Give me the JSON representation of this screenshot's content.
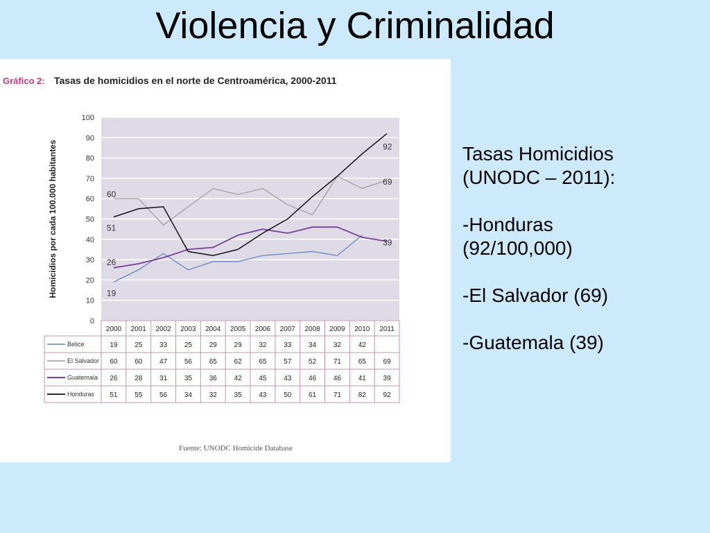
{
  "slide": {
    "title": "Violencia y Criminalidad",
    "notes": {
      "heading_line1": "Tasas Homicidios",
      "heading_line2": "(UNODC – 2011):",
      "item1_line1": "-Honduras",
      "item1_line2": "(92/100,000)",
      "item2": "-El Salvador (69)",
      "item3": "-Guatemala (39)"
    }
  },
  "chart_data": {
    "type": "line",
    "figure_label": "Gráfico 2:",
    "title": "Tasas de homicidios en el norte de Centroamérica, 2000-2011",
    "ylabel": "Homicidios por cada 100.000 habitantes",
    "xlabel": "",
    "source": "Fuente: UNODC Homicide Database",
    "categories": [
      "2000",
      "2001",
      "2002",
      "2003",
      "2004",
      "2005",
      "2006",
      "2007",
      "2008",
      "2009",
      "2010",
      "2011"
    ],
    "ylim": [
      0,
      100
    ],
    "yticks": [
      0,
      10,
      20,
      30,
      40,
      50,
      60,
      70,
      80,
      90,
      100
    ],
    "grid": true,
    "legend": "table-below",
    "series": [
      {
        "name": "Belice",
        "color": "#5b7fc4",
        "width": 1.2,
        "values": [
          19,
          25,
          33,
          25,
          29,
          29,
          32,
          33,
          34,
          32,
          42,
          null
        ]
      },
      {
        "name": "El Salvador",
        "color": "#9a9a9a",
        "width": 1.2,
        "values": [
          60,
          60,
          47,
          56,
          65,
          62,
          65,
          57,
          52,
          71,
          65,
          69
        ]
      },
      {
        "name": "Guatemala",
        "color": "#7a3f98",
        "width": 1.8,
        "values": [
          26,
          28,
          31,
          35,
          36,
          42,
          45,
          43,
          46,
          46,
          41,
          39
        ]
      },
      {
        "name": "Honduras",
        "color": "#111111",
        "width": 1.5,
        "values": [
          51,
          55,
          56,
          34,
          32,
          35,
          43,
          50,
          61,
          71,
          82,
          92
        ]
      }
    ],
    "annotations": [
      {
        "series": "El Salvador",
        "side": "start",
        "text": "60"
      },
      {
        "series": "Honduras",
        "side": "start",
        "text": "51"
      },
      {
        "series": "Guatemala",
        "side": "start",
        "text": "26"
      },
      {
        "series": "Belice",
        "side": "start",
        "text": "19"
      },
      {
        "series": "Honduras",
        "side": "end",
        "text": "92"
      },
      {
        "series": "El Salvador",
        "side": "end",
        "text": "69"
      },
      {
        "series": "Guatemala",
        "side": "end",
        "text": "39"
      }
    ]
  }
}
